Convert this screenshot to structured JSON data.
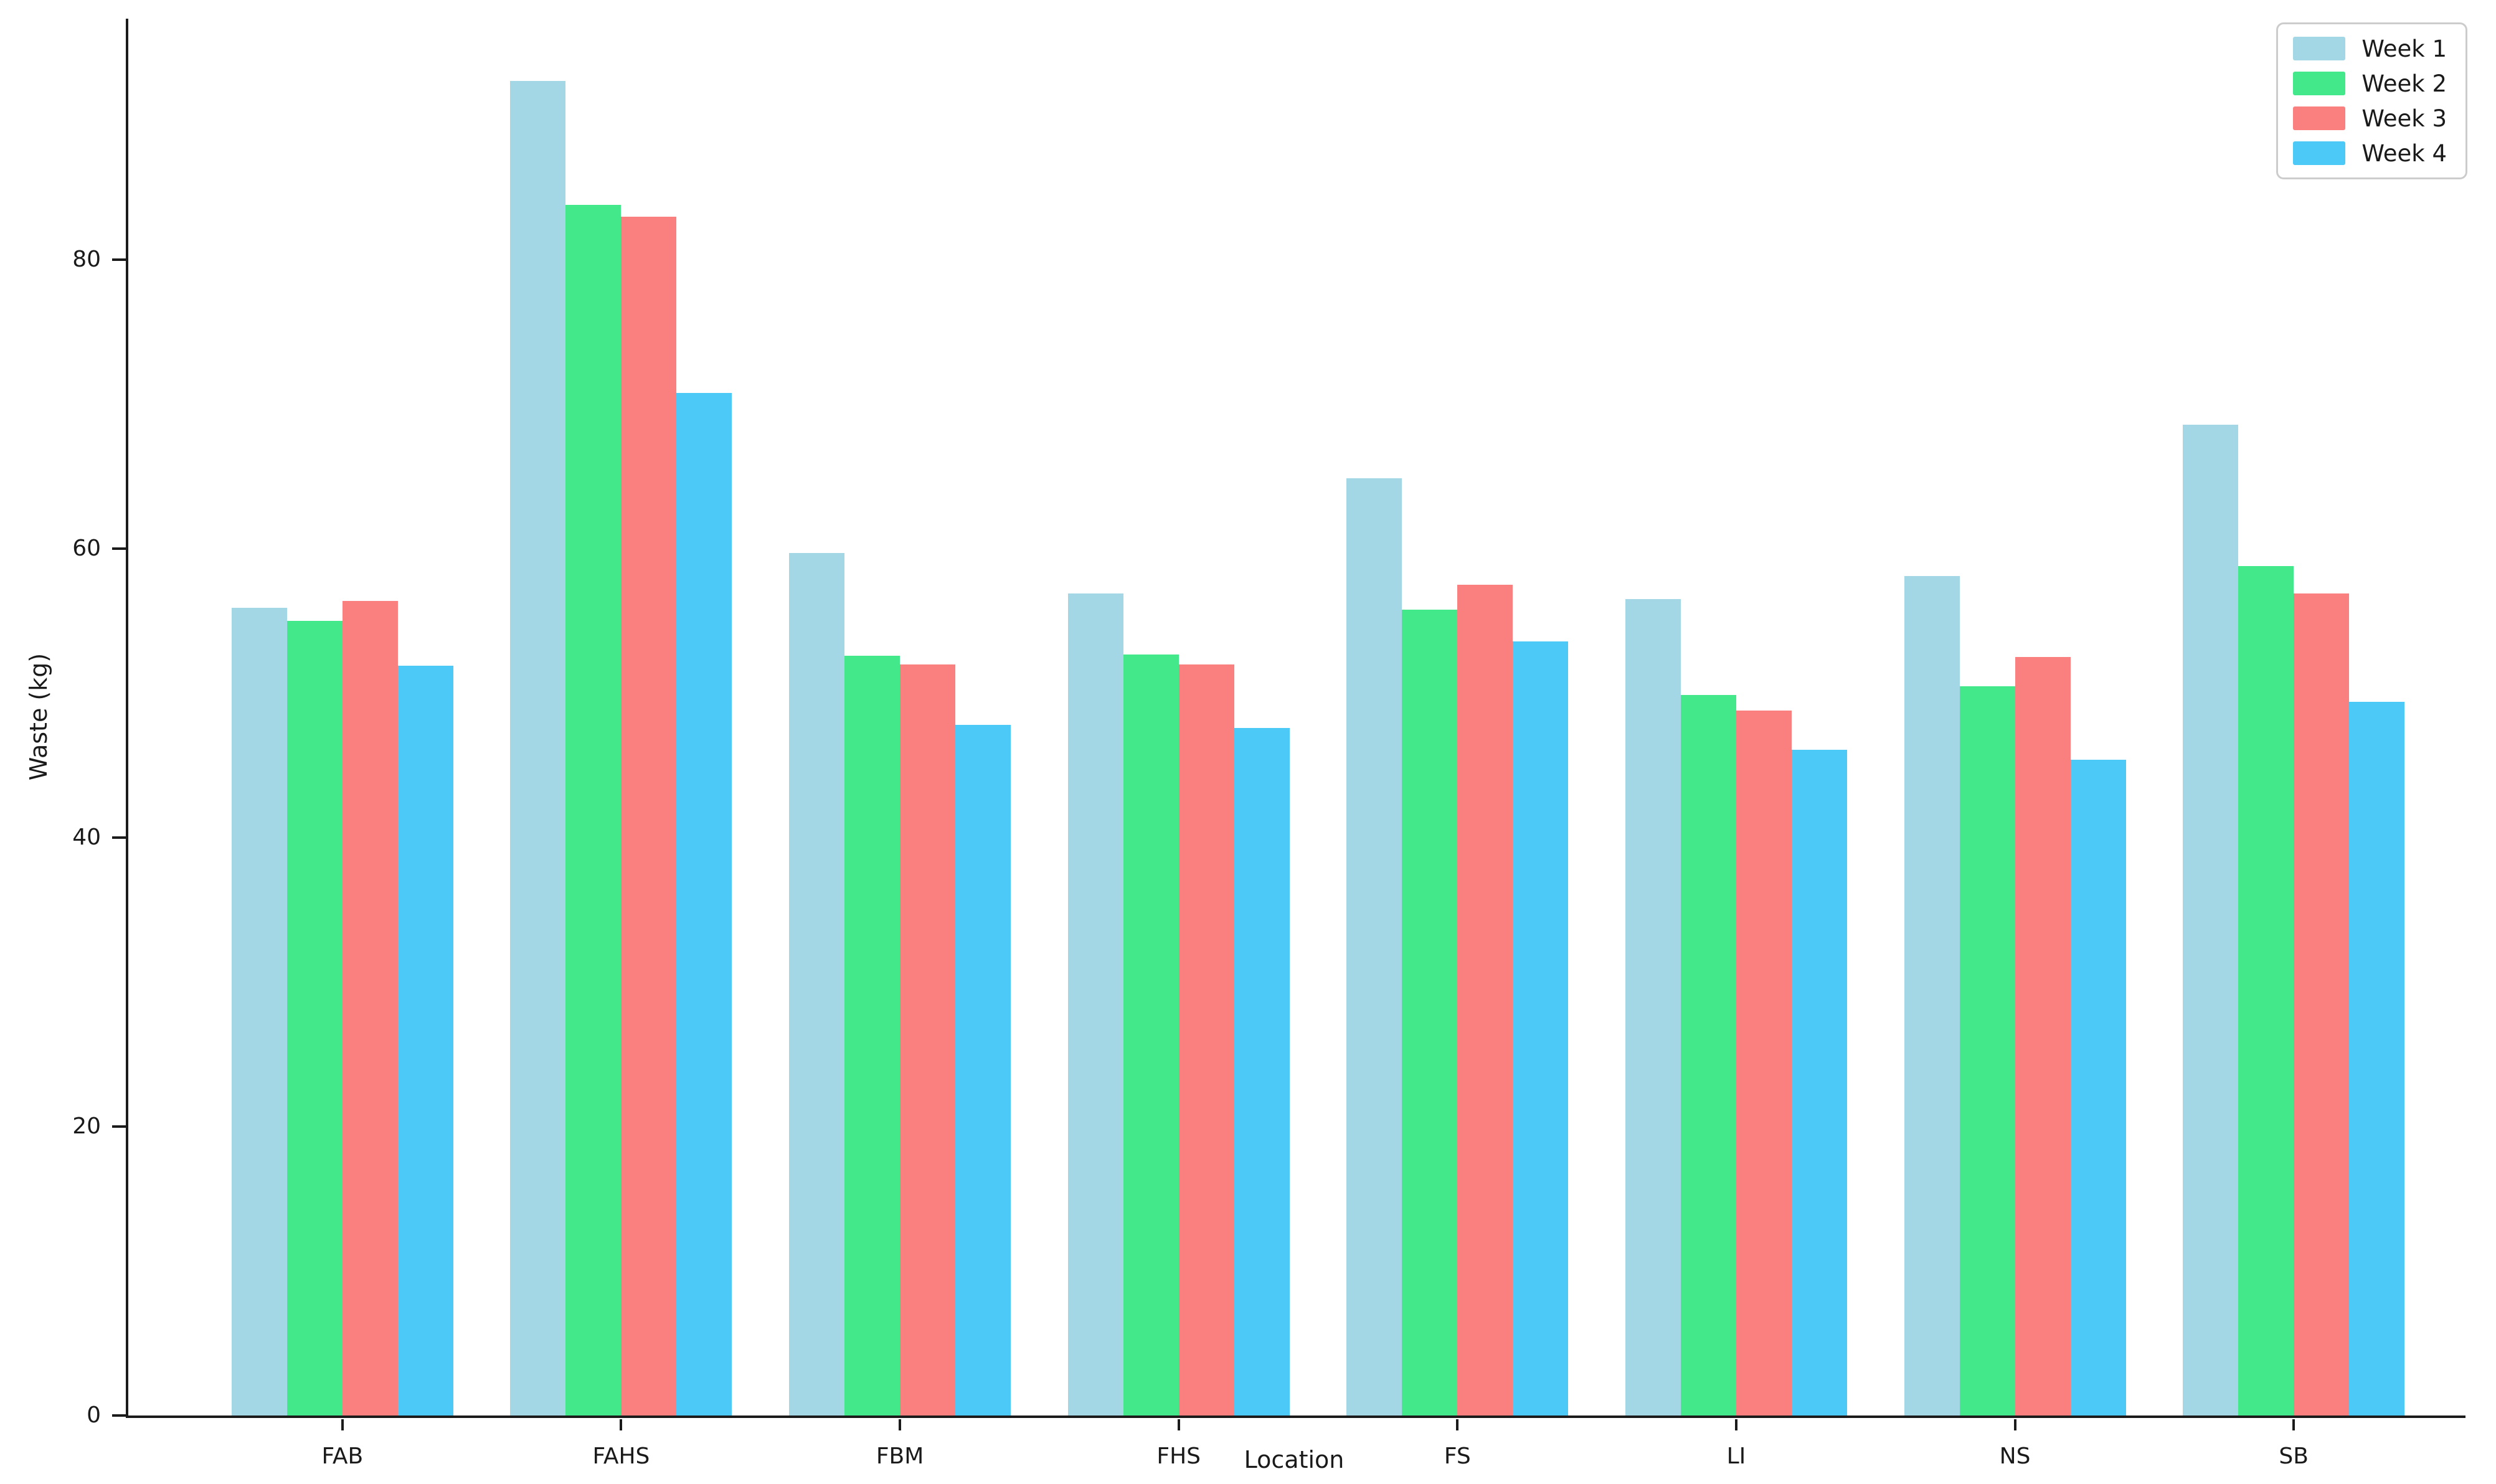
{
  "chart_data": {
    "type": "bar",
    "title": "",
    "xlabel": "Location",
    "ylabel": "Waste (kg)",
    "categories": [
      "FAB",
      "FAHS",
      "FBM",
      "FHS",
      "FS",
      "LI",
      "NS",
      "SB"
    ],
    "series": [
      {
        "name": "Week 1",
        "color": "#A4D7E6",
        "values": [
          55.9,
          92.4,
          59.7,
          56.9,
          64.9,
          56.5,
          58.1,
          68.6
        ]
      },
      {
        "name": "Week 2",
        "color": "#43E88A",
        "values": [
          55.0,
          83.8,
          52.6,
          52.7,
          55.8,
          49.9,
          50.5,
          58.8
        ]
      },
      {
        "name": "Week 3",
        "color": "#FA7F7F",
        "values": [
          56.4,
          83.0,
          52.0,
          52.0,
          57.5,
          48.8,
          52.5,
          56.9
        ]
      },
      {
        "name": "Week 4",
        "color": "#4DC9F7",
        "values": [
          51.9,
          70.8,
          47.8,
          47.6,
          53.6,
          46.1,
          45.4,
          49.4
        ]
      }
    ],
    "ylim": [
      0,
      96.7
    ],
    "yticks": [
      0,
      20,
      40,
      60,
      80
    ],
    "grid": false,
    "legend_position": "upper right",
    "axis_color": "#1b1b1b",
    "legend_border_color": "#cccccc"
  }
}
